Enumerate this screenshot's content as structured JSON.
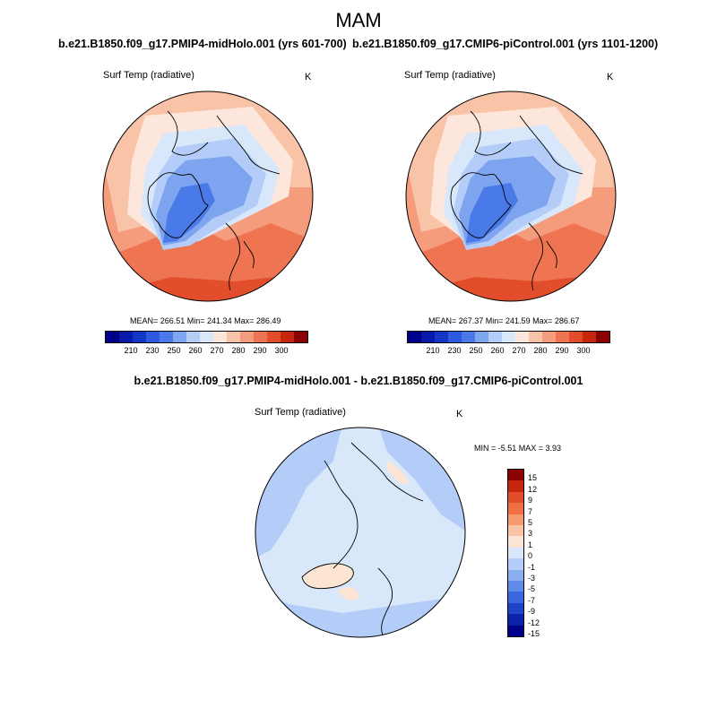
{
  "figure": {
    "season": "MAM",
    "variable": "Surf Temp (radiative)",
    "units": "K"
  },
  "panels": {
    "left": {
      "title": "b.e21.B1850.f09_g17.PMIP4-midHolo.001 (yrs 601-700)",
      "stats": "MEAN= 266.51   Min= 241.34   Max= 286.49",
      "colorbar_labels": [
        "210",
        "230",
        "250",
        "260",
        "270",
        "280",
        "290",
        "300"
      ]
    },
    "right": {
      "title": "b.e21.B1850.f09_g17.CMIP6-piControl.001 (yrs 1101-1200)",
      "stats": "MEAN= 267.37   Min= 241.59   Max= 286.67",
      "colorbar_labels": [
        "210",
        "230",
        "250",
        "260",
        "270",
        "280",
        "290",
        "300"
      ]
    },
    "diff": {
      "title": "b.e21.B1850.f09_g17.PMIP4-midHolo.001 - b.e21.B1850.f09_g17.CMIP6-piControl.001",
      "stats": "MIN =  -5.51 MAX =   3.93",
      "colorbar_labels": [
        "15",
        "12",
        "9",
        "7",
        "5",
        "3",
        "1",
        "0",
        "-1",
        "-3",
        "-5",
        "-7",
        "-9",
        "-12",
        "-15"
      ]
    }
  },
  "colors": {
    "abs_scale": [
      "#00008b",
      "#0a1aa8",
      "#1636c8",
      "#2c5ae0",
      "#4a7ae8",
      "#7ea4f0",
      "#b4cdf8",
      "#d8e8fa",
      "#fde7dc",
      "#f9c3a7",
      "#f59c7c",
      "#ef7552",
      "#e24e2b",
      "#c8270f",
      "#8b0000"
    ],
    "diff_scale": [
      "#8b0000",
      "#c8270f",
      "#e24e2b",
      "#f07044",
      "#f59a6e",
      "#f8c4a4",
      "#fde5d4",
      "#d8e8fa",
      "#b4cdf8",
      "#8aaef0",
      "#5f8ae8",
      "#3a66e0",
      "#1f44c8",
      "#0c22a8",
      "#00008b"
    ],
    "land_line": "#000000"
  }
}
